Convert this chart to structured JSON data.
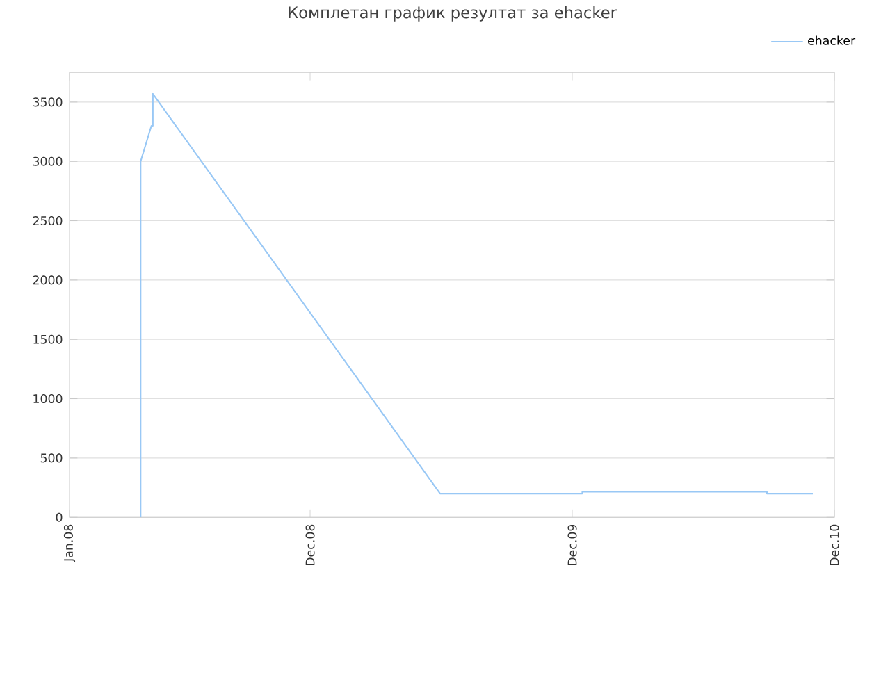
{
  "chart_data": {
    "type": "line",
    "title": "Комплетан график резултат за ehacker",
    "x": [
      "2008-04-09",
      "2008-04-09",
      "2008-04-24",
      "2008-04-26",
      "2008-04-26",
      "2009-05-31",
      "2009-12-15",
      "2009-12-15",
      "2010-08-29",
      "2010-08-29",
      "2010-11-01"
    ],
    "series": [
      {
        "name": "ehacker",
        "color": "#99c8f5",
        "values": [
          0,
          3000,
          3300,
          3300,
          3570,
          200,
          200,
          215,
          215,
          200,
          200
        ]
      }
    ],
    "xlim": [
      "2008-01-01",
      "2010-12-01"
    ],
    "xticks": [
      {
        "value": "2008-01-01",
        "label": "Jan.08"
      },
      {
        "value": "2008-12-01",
        "label": "Dec.08"
      },
      {
        "value": "2009-12-01",
        "label": "Dec.09"
      },
      {
        "value": "2010-12-01",
        "label": "Dec.10"
      }
    ],
    "ylim": [
      0,
      3750
    ],
    "yticks": [
      0,
      500,
      1000,
      1500,
      2000,
      2500,
      3000,
      3500
    ],
    "grid": "y",
    "legend": "top right",
    "marker": "none",
    "line_style": "solid"
  }
}
